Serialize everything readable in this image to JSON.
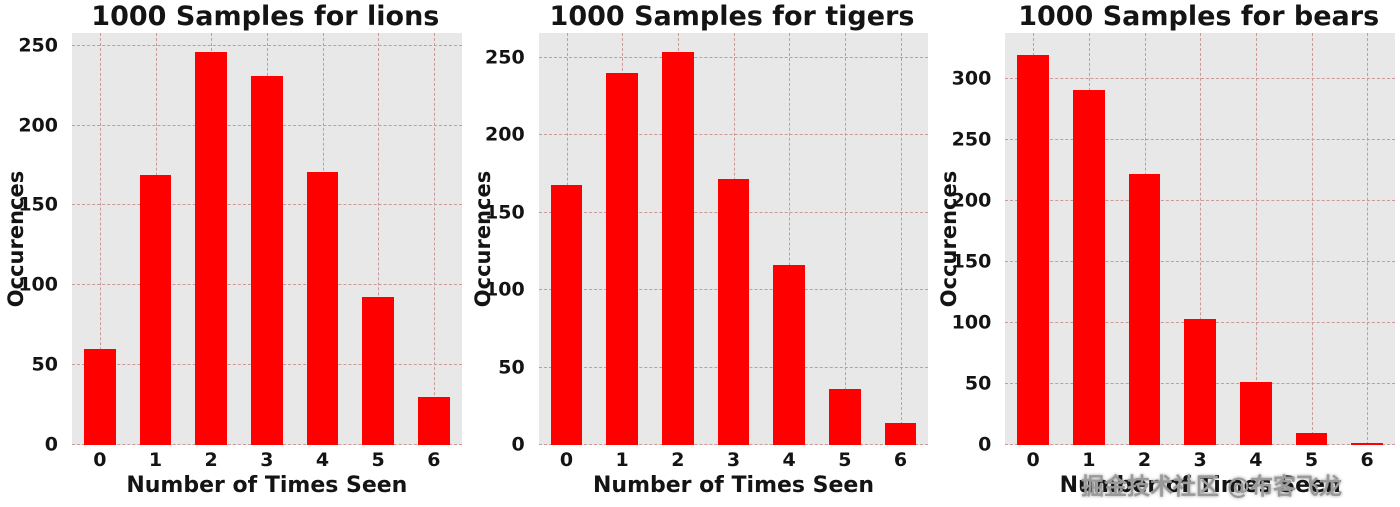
{
  "watermark": "掘金技术社区 @布客飞龙",
  "chart_data": [
    {
      "type": "bar",
      "title": "1000 Samples for lions",
      "xlabel": "Number of Times Seen",
      "ylabel": "Occurences",
      "categories": [
        "0",
        "1",
        "2",
        "3",
        "4",
        "5",
        "6"
      ],
      "values": [
        60,
        169,
        246,
        231,
        171,
        93,
        30
      ],
      "ylim": [
        0,
        258
      ],
      "yticks": [
        0,
        50,
        100,
        150,
        200,
        250
      ],
      "bar_color": "#ff0000",
      "grid": true,
      "legend": "none"
    },
    {
      "type": "bar",
      "title": "1000 Samples for tigers",
      "xlabel": "Number of Times Seen",
      "ylabel": "Occurences",
      "categories": [
        "0",
        "1",
        "2",
        "3",
        "4",
        "5",
        "6"
      ],
      "values": [
        168,
        240,
        254,
        172,
        116,
        36,
        14
      ],
      "ylim": [
        0,
        266
      ],
      "yticks": [
        0,
        50,
        100,
        150,
        200,
        250
      ],
      "bar_color": "#ff0000",
      "grid": true,
      "legend": "none"
    },
    {
      "type": "bar",
      "title": "1000 Samples for bears",
      "xlabel": "Number of Times Seen",
      "ylabel": "Occurences",
      "categories": [
        "0",
        "1",
        "2",
        "3",
        "4",
        "5",
        "6"
      ],
      "values": [
        320,
        291,
        222,
        103,
        52,
        10,
        2
      ],
      "ylim": [
        0,
        338
      ],
      "yticks": [
        0,
        50,
        100,
        150,
        200,
        250,
        300
      ],
      "bar_color": "#ff0000",
      "grid": true,
      "legend": "none"
    }
  ]
}
